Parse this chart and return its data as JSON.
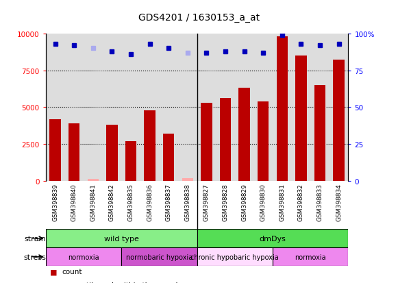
{
  "title": "GDS4201 / 1630153_a_at",
  "samples": [
    "GSM398839",
    "GSM398840",
    "GSM398841",
    "GSM398842",
    "GSM398835",
    "GSM398836",
    "GSM398837",
    "GSM398838",
    "GSM398827",
    "GSM398828",
    "GSM398829",
    "GSM398830",
    "GSM398831",
    "GSM398832",
    "GSM398833",
    "GSM398834"
  ],
  "counts": [
    4200,
    3900,
    120,
    3800,
    2700,
    4800,
    3200,
    200,
    5300,
    5600,
    6300,
    5400,
    9800,
    8500,
    6500,
    8200
  ],
  "percentile_ranks": [
    93,
    92,
    90,
    88,
    86,
    93,
    90,
    87,
    87,
    88,
    88,
    87,
    99,
    93,
    92,
    93
  ],
  "absent_flags": [
    false,
    false,
    true,
    false,
    false,
    false,
    false,
    true,
    false,
    false,
    false,
    false,
    false,
    false,
    false,
    false
  ],
  "strain_groups": [
    {
      "label": "wild type",
      "start": 0,
      "end": 8,
      "color": "#88EE88"
    },
    {
      "label": "dmDys",
      "start": 8,
      "end": 16,
      "color": "#55DD55"
    }
  ],
  "stress_groups": [
    {
      "label": "normoxia",
      "start": 0,
      "end": 4,
      "color": "#EE88EE"
    },
    {
      "label": "normobaric hypoxia",
      "start": 4,
      "end": 8,
      "color": "#CC55CC"
    },
    {
      "label": "chronic hypobaric hypoxia",
      "start": 8,
      "end": 12,
      "color": "#FFDDFF"
    },
    {
      "label": "normoxia",
      "start": 12,
      "end": 16,
      "color": "#EE88EE"
    }
  ],
  "bar_color": "#BB0000",
  "absent_bar_color": "#FFAAAA",
  "dot_color": "#0000BB",
  "absent_dot_color": "#AAAAEE",
  "yticks_left": [
    0,
    2500,
    5000,
    7500,
    10000
  ],
  "yticks_right": [
    0,
    25,
    50,
    75,
    100
  ],
  "plot_bg_color": "#dddddd",
  "sample_bg_color": "#cccccc"
}
